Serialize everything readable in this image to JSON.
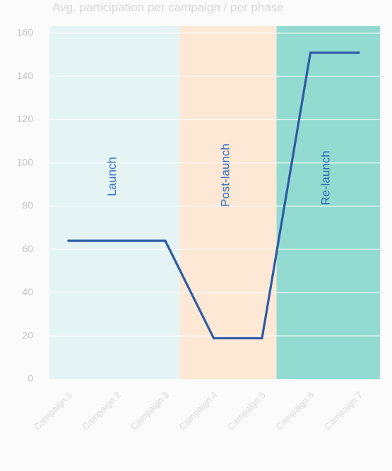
{
  "chart_data": {
    "type": "line",
    "title": "Avg. participation per campaign / per phase",
    "xlabel": "",
    "ylabel": "",
    "categories": [
      "Campaign 1",
      "Campaign 2",
      "Campaign 3",
      "Campaign 4",
      "Campaign 5",
      "Campaign 6",
      "Campaign 7"
    ],
    "series": [
      {
        "name": "",
        "values": [
          64,
          64,
          64,
          19,
          19,
          151,
          151
        ]
      }
    ],
    "ylim": [
      0,
      160
    ],
    "yticks": [
      0,
      20,
      40,
      60,
      80,
      100,
      120,
      140,
      160
    ],
    "grid": "horizontal, on phase bands",
    "phases": [
      {
        "label": "Launch",
        "from": 0.5,
        "to": 3.3,
        "color": "#e4f4f5"
      },
      {
        "label": "Post-launch",
        "from": 3.3,
        "to": 5.3,
        "color": "#fde8d5"
      },
      {
        "label": "Re-launch",
        "from": 5.3,
        "to": 7.3,
        "color": "#93dbd1"
      }
    ],
    "line_color": "#2c5ba5"
  }
}
